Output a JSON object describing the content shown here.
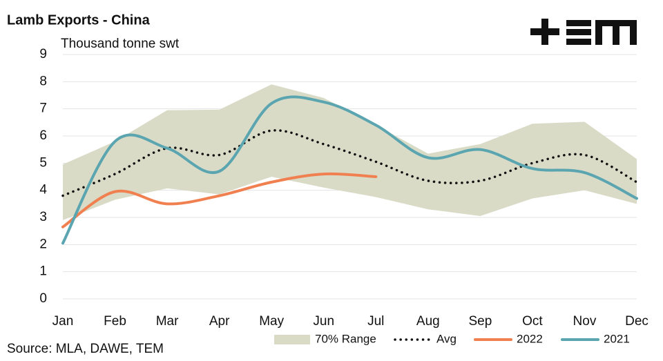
{
  "chart_data": {
    "type": "line",
    "title": "Lamb Exports - China",
    "y_label": "Thousand tonne swt",
    "source": "Source: MLA, DAWE, TEM",
    "categories": [
      "Jan",
      "Feb",
      "Mar",
      "Apr",
      "May",
      "Jun",
      "Jul",
      "Aug",
      "Sep",
      "Oct",
      "Nov",
      "Dec"
    ],
    "ylim": [
      0,
      9
    ],
    "yticks": [
      0,
      1,
      2,
      3,
      4,
      5,
      6,
      7,
      8,
      9
    ],
    "grid": true,
    "range": {
      "name": "70% Range",
      "color": "#d9dbc7",
      "upper": [
        4.95,
        5.8,
        6.95,
        6.97,
        7.9,
        7.4,
        6.4,
        5.35,
        5.7,
        6.45,
        6.52,
        5.15
      ],
      "lower": [
        2.9,
        3.65,
        4.07,
        3.85,
        4.5,
        4.1,
        3.75,
        3.3,
        3.05,
        3.7,
        4.0,
        3.5
      ]
    },
    "series": [
      {
        "name": "Avg",
        "color": "#111111",
        "dotted": true,
        "values": [
          3.8,
          4.6,
          5.55,
          5.3,
          6.2,
          5.7,
          5.05,
          4.35,
          4.35,
          5.0,
          5.3,
          4.3
        ]
      },
      {
        "name": "2022",
        "color": "#f08050",
        "values": [
          2.65,
          3.95,
          3.5,
          3.8,
          4.3,
          4.6,
          4.5,
          null,
          null,
          null,
          null,
          null
        ]
      },
      {
        "name": "2021",
        "color": "#5aa5b0",
        "values": [
          2.05,
          5.8,
          5.55,
          4.7,
          7.2,
          7.25,
          6.4,
          5.2,
          5.5,
          4.8,
          4.65,
          3.7
        ]
      }
    ]
  }
}
